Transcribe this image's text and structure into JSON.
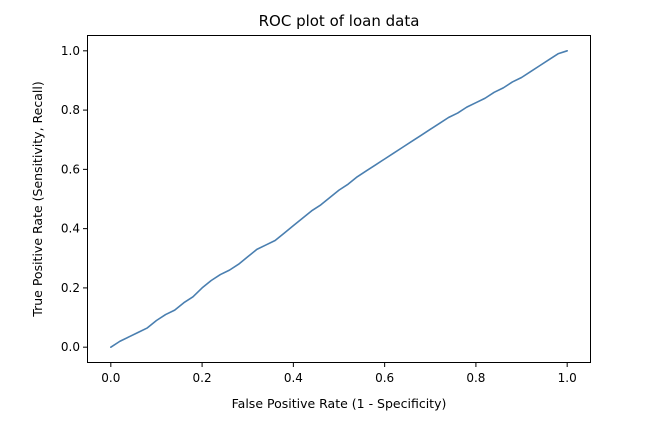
{
  "chart_data": {
    "type": "line",
    "title": "ROC plot of loan data",
    "xlabel": "False Positive Rate (1 - Specificity)",
    "ylabel": "True Positive Rate (Sensitivity, Recall)",
    "xlim": [
      -0.05,
      1.05
    ],
    "ylim": [
      -0.05,
      1.05
    ],
    "xticks": [
      0.0,
      0.2,
      0.4,
      0.6,
      0.8,
      1.0
    ],
    "xtick_labels": [
      "0.0",
      "0.2",
      "0.4",
      "0.6",
      "0.8",
      "1.0"
    ],
    "yticks": [
      0.0,
      0.2,
      0.4,
      0.6,
      0.8,
      1.0
    ],
    "ytick_labels": [
      "0.0",
      "0.2",
      "0.4",
      "0.6",
      "0.8",
      "1.0"
    ],
    "grid": false,
    "series": [
      {
        "color": "#4a7fb0",
        "x": [
          0.0,
          0.02,
          0.04,
          0.06,
          0.08,
          0.1,
          0.12,
          0.14,
          0.16,
          0.18,
          0.2,
          0.22,
          0.24,
          0.26,
          0.28,
          0.3,
          0.32,
          0.34,
          0.36,
          0.38,
          0.4,
          0.42,
          0.44,
          0.46,
          0.48,
          0.5,
          0.52,
          0.54,
          0.56,
          0.58,
          0.6,
          0.62,
          0.64,
          0.66,
          0.68,
          0.7,
          0.72,
          0.74,
          0.76,
          0.78,
          0.8,
          0.82,
          0.84,
          0.86,
          0.88,
          0.9,
          0.92,
          0.94,
          0.96,
          0.98,
          1.0
        ],
        "y": [
          0.0,
          0.02,
          0.035,
          0.05,
          0.065,
          0.09,
          0.11,
          0.125,
          0.15,
          0.17,
          0.2,
          0.225,
          0.245,
          0.26,
          0.28,
          0.305,
          0.33,
          0.345,
          0.36,
          0.385,
          0.41,
          0.435,
          0.46,
          0.48,
          0.505,
          0.53,
          0.55,
          0.575,
          0.595,
          0.615,
          0.635,
          0.655,
          0.675,
          0.695,
          0.715,
          0.735,
          0.755,
          0.775,
          0.79,
          0.81,
          0.825,
          0.84,
          0.86,
          0.875,
          0.895,
          0.91,
          0.93,
          0.95,
          0.97,
          0.99,
          1.0
        ]
      }
    ]
  }
}
